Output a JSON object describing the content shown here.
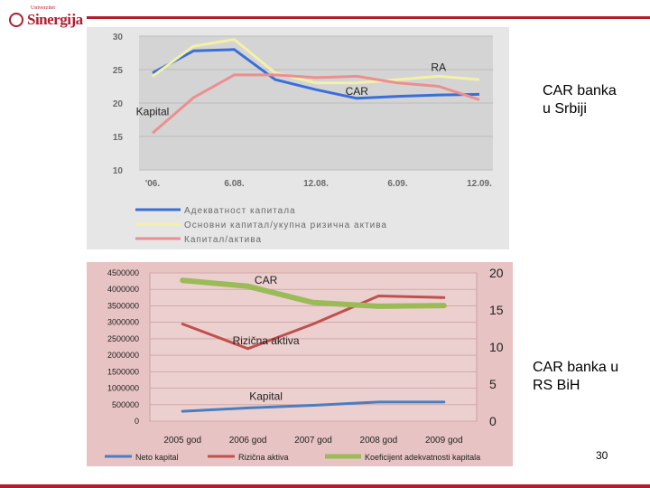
{
  "logo": {
    "small": "Univerzitet",
    "big": "Sinergija"
  },
  "page_number": "30",
  "captions": {
    "top": "CAR banka\nu  Srbiji",
    "bottom": "CAR banka u\nRS BiH"
  },
  "colors": {
    "brand": "#b01e2d"
  },
  "chart_data": [
    {
      "type": "line",
      "categories": [
        "'06.",
        "",
        "6.08.",
        "",
        "12.08.",
        "",
        "6.09.",
        "",
        "12.09."
      ],
      "ylim": [
        10,
        30
      ],
      "yticks": [
        10,
        15,
        20,
        25,
        30
      ],
      "grid": true,
      "series": [
        {
          "name": "Адекватност капитала",
          "color": "#3a6fd8",
          "values": [
            24.5,
            27.8,
            28.0,
            23.5,
            22.0,
            20.7,
            21.0,
            21.2,
            21.3
          ]
        },
        {
          "name": "Основни капитал/укупна ризична актива",
          "color": "#f3f0a8",
          "values": [
            24.0,
            28.5,
            29.5,
            24.5,
            23.0,
            23.0,
            23.5,
            24.0,
            23.5
          ]
        },
        {
          "name": "Капитал/актива",
          "color": "#ec8f8f",
          "values": [
            15.5,
            20.8,
            24.2,
            24.2,
            23.8,
            24.0,
            23.0,
            22.5,
            20.5
          ]
        }
      ],
      "annotations": [
        {
          "text": "RA",
          "series": 1,
          "index": 7,
          "dy": -6
        },
        {
          "text": "CAR",
          "series": 0,
          "index": 5,
          "dy": -4
        },
        {
          "text": "Kapital",
          "series": 2,
          "index": 0,
          "dy": -20
        }
      ],
      "legend_position": "bottom"
    },
    {
      "type": "line",
      "categories": [
        "2005 god",
        "2006 god",
        "2007 god",
        "2008 god",
        "2009 god"
      ],
      "ylim": [
        0,
        4500000
      ],
      "yticks": [
        0,
        500000,
        1000000,
        1500000,
        2000000,
        2500000,
        3000000,
        3500000,
        4000000,
        4500000
      ],
      "y2lim": [
        0,
        20
      ],
      "y2ticks": [
        0,
        5,
        10,
        15,
        20
      ],
      "grid": true,
      "series": [
        {
          "name": "Neto kapital",
          "color": "#4a7ec0",
          "axis": "left",
          "values": [
            300000,
            400000,
            480000,
            580000,
            580000
          ]
        },
        {
          "name": "Rizična aktiva",
          "color": "#c0504d",
          "axis": "left",
          "values": [
            2950000,
            2200000,
            2950000,
            3800000,
            3750000
          ]
        },
        {
          "name": "Koeficijent adekvatnosti kapitala",
          "color": "#9bbb59",
          "axis": "right",
          "values": [
            19.0,
            18.2,
            16.0,
            15.5,
            15.6
          ]
        }
      ],
      "annotations": [
        {
          "text": "CAR",
          "series": 2,
          "index": 1,
          "dy": -3
        },
        {
          "text": "Rizična aktiva",
          "series": 1,
          "index": 1,
          "dy": -5
        },
        {
          "text": "Kapital",
          "series": 0,
          "index": 1,
          "dy": -9
        }
      ],
      "legend_position": "bottom"
    }
  ]
}
